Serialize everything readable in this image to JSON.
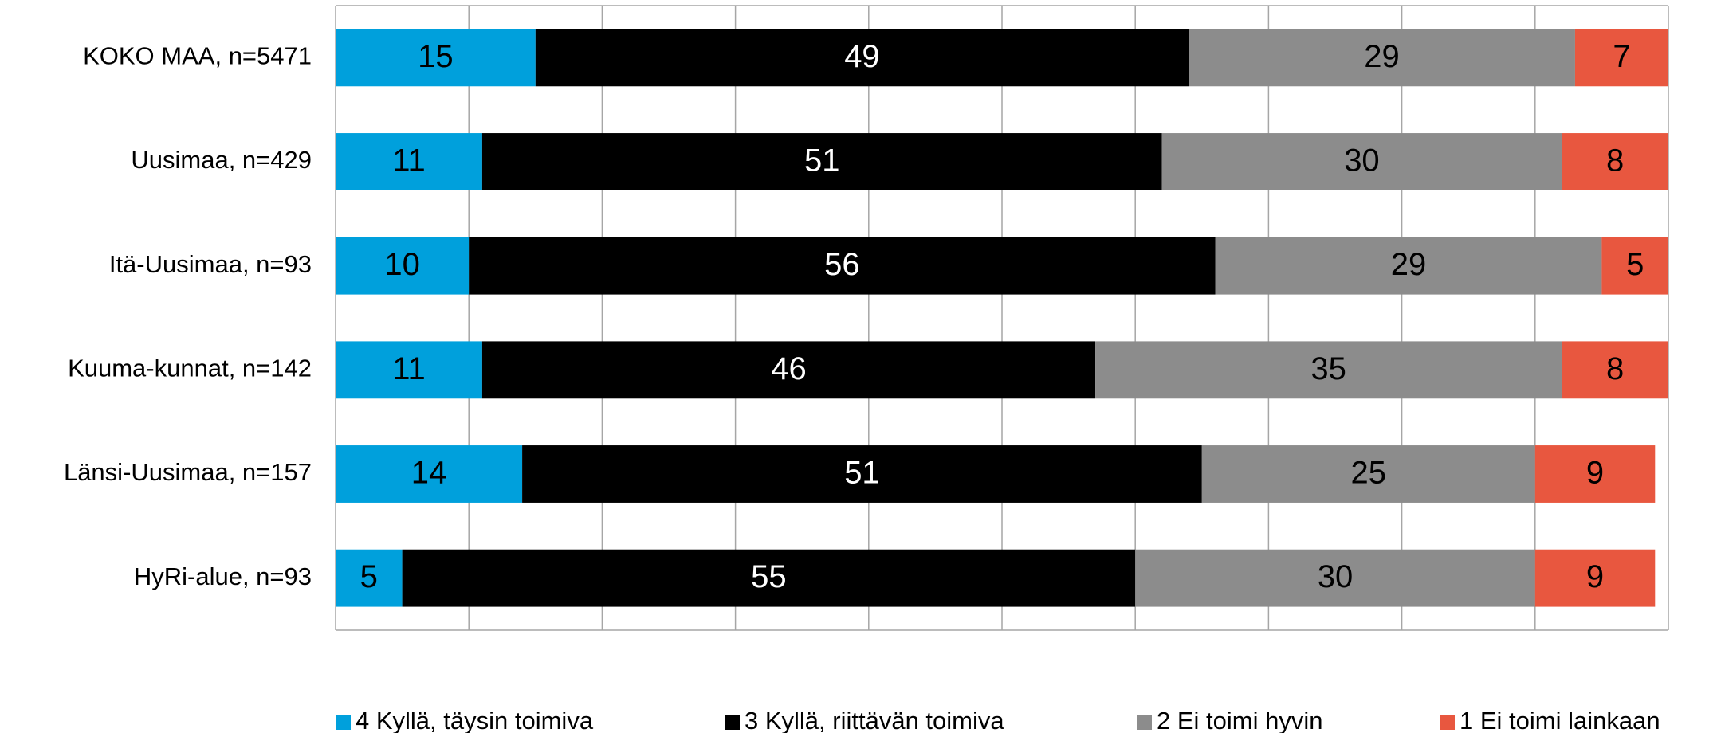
{
  "chart_data": {
    "type": "stacked_bar_horizontal",
    "categories": [
      "KOKO MAA, n=5471",
      "Uusimaa, n=429",
      "Itä-Uusimaa, n=93",
      "Kuuma-kunnat, n=142",
      "Länsi-Uusimaa, n=157",
      "HyRi-alue, n=93"
    ],
    "series": [
      {
        "name": "4 Kyllä, täysin toimiva",
        "color": "#00a0dc",
        "label_color": "#000000",
        "values": [
          15,
          11,
          10,
          11,
          14,
          5
        ]
      },
      {
        "name": "3 Kyllä, riittävän toimiva",
        "color": "#000000",
        "label_color": "#ffffff",
        "values": [
          49,
          51,
          56,
          46,
          51,
          55
        ]
      },
      {
        "name": "2 Ei toimi hyvin",
        "color": "#8c8c8c",
        "label_color": "#000000",
        "values": [
          29,
          30,
          29,
          35,
          25,
          30
        ]
      },
      {
        "name": "1 Ei toimi lainkaan",
        "color": "#e8573f",
        "label_color": "#000000",
        "values": [
          7,
          8,
          5,
          8,
          9,
          9
        ]
      }
    ],
    "xlim": [
      0,
      100
    ],
    "xticks": [
      0,
      10,
      20,
      30,
      40,
      50,
      60,
      70,
      80,
      90,
      100
    ],
    "grid": true,
    "legend": "bottom"
  }
}
